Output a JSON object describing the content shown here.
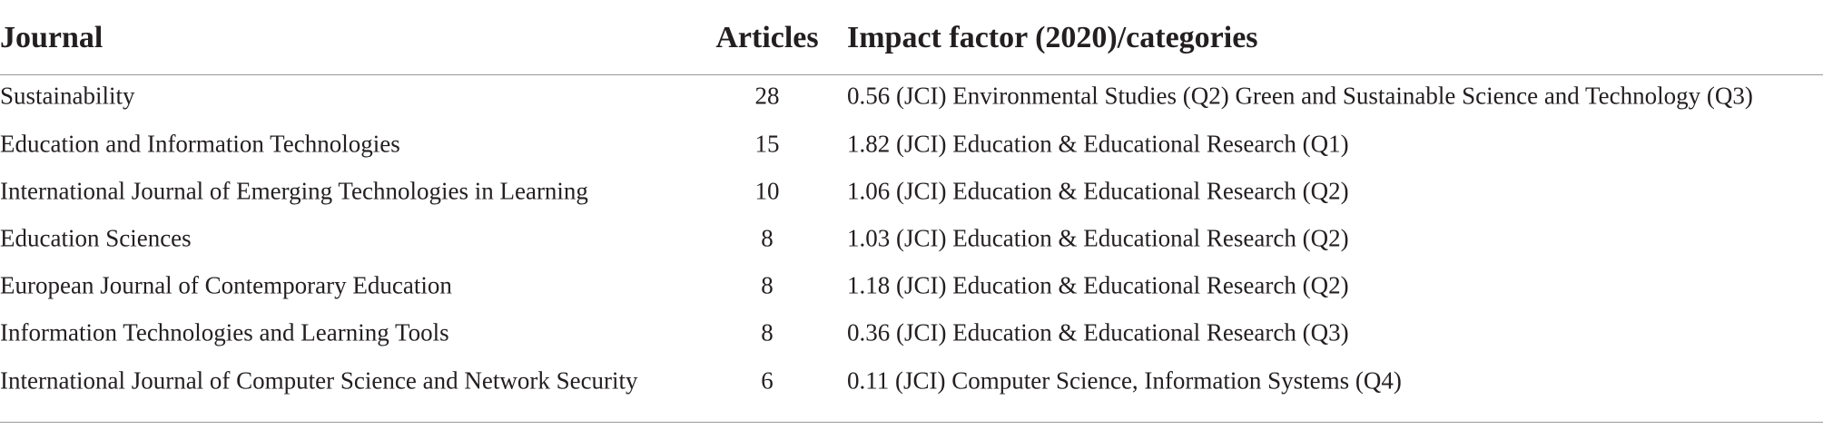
{
  "table": {
    "columns": [
      "Journal",
      "Articles",
      "Impact factor (2020)/categories"
    ],
    "rows": [
      [
        "Sustainability",
        28,
        "0.56 (JCI) Environmental Studies (Q2) Green and Sustainable Science and Technology (Q3)"
      ],
      [
        "Education and Information Technologies",
        15,
        "1.82 (JCI) Education & Educational Research (Q1)"
      ],
      [
        "International Journal of Emerging Technologies in Learning",
        10,
        "1.06 (JCI) Education & Educational Research (Q2)"
      ],
      [
        "Education Sciences",
        8,
        "1.03 (JCI) Education & Educational Research (Q2)"
      ],
      [
        "European Journal of Contemporary Education",
        8,
        "1.18 (JCI) Education & Educational Research (Q2)"
      ],
      [
        "Information Technologies and Learning Tools",
        8,
        "0.36 (JCI) Education & Educational Research (Q3)"
      ],
      [
        "International Journal of Computer Science and Network Security",
        6,
        "0.11 (JCI) Computer Science, Information Systems (Q4)"
      ]
    ]
  }
}
